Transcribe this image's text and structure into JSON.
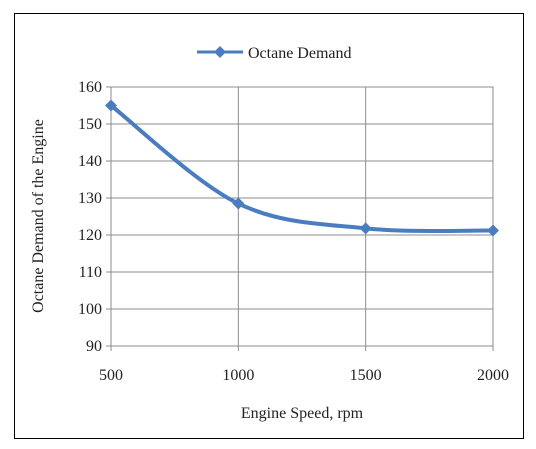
{
  "chart_data": {
    "type": "line",
    "title": "",
    "xlabel": "Engine Speed, rpm",
    "ylabel": "Octane Demand of the Engine",
    "x_ticks": [
      500,
      1000,
      1500,
      2000
    ],
    "y_ticks": [
      90,
      100,
      110,
      120,
      130,
      140,
      150,
      160
    ],
    "xlim": [
      500,
      2000
    ],
    "ylim": [
      90,
      160
    ],
    "grid": "vertical and horizontal",
    "legend": "top-center",
    "series": [
      {
        "name": "Octane Demand",
        "color": "#4a7dc0",
        "marker": "diamond",
        "smooth": true,
        "x": [
          500,
          1000,
          1500,
          2000
        ],
        "y": [
          155,
          128.5,
          121.8,
          121.2
        ]
      }
    ]
  }
}
